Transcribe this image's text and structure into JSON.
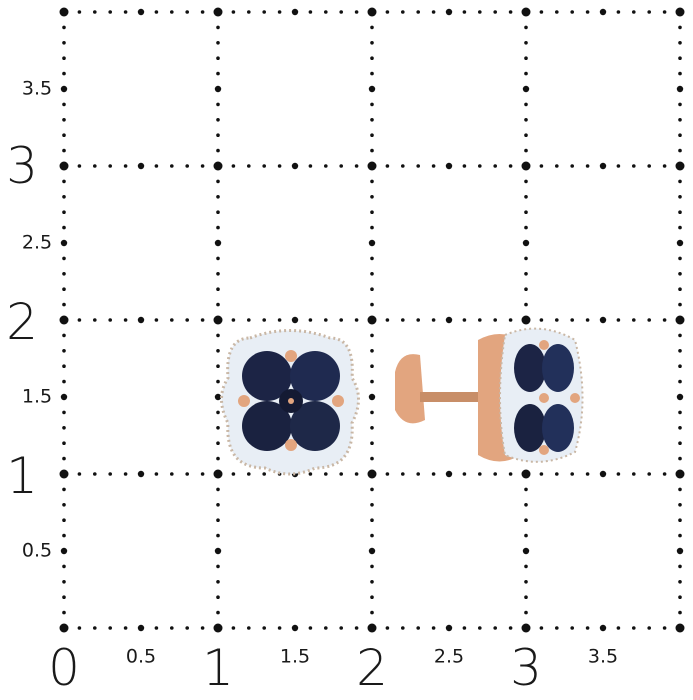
{
  "grid": {
    "x_major_labels": [
      "0",
      "1",
      "2",
      "3"
    ],
    "x_minor_labels": [
      "0.5",
      "1.5",
      "2.5",
      "3.5"
    ],
    "y_major_labels": [
      "1",
      "2",
      "3"
    ],
    "y_minor_labels": [
      "0.5",
      "1.5",
      "2.5",
      "3.5"
    ],
    "dot_color": "#111111"
  },
  "product": {
    "type": "stud earrings",
    "metal_color": "#e2a57f",
    "gem_color": "#1c2445",
    "halo_color": "#e8eef5"
  }
}
